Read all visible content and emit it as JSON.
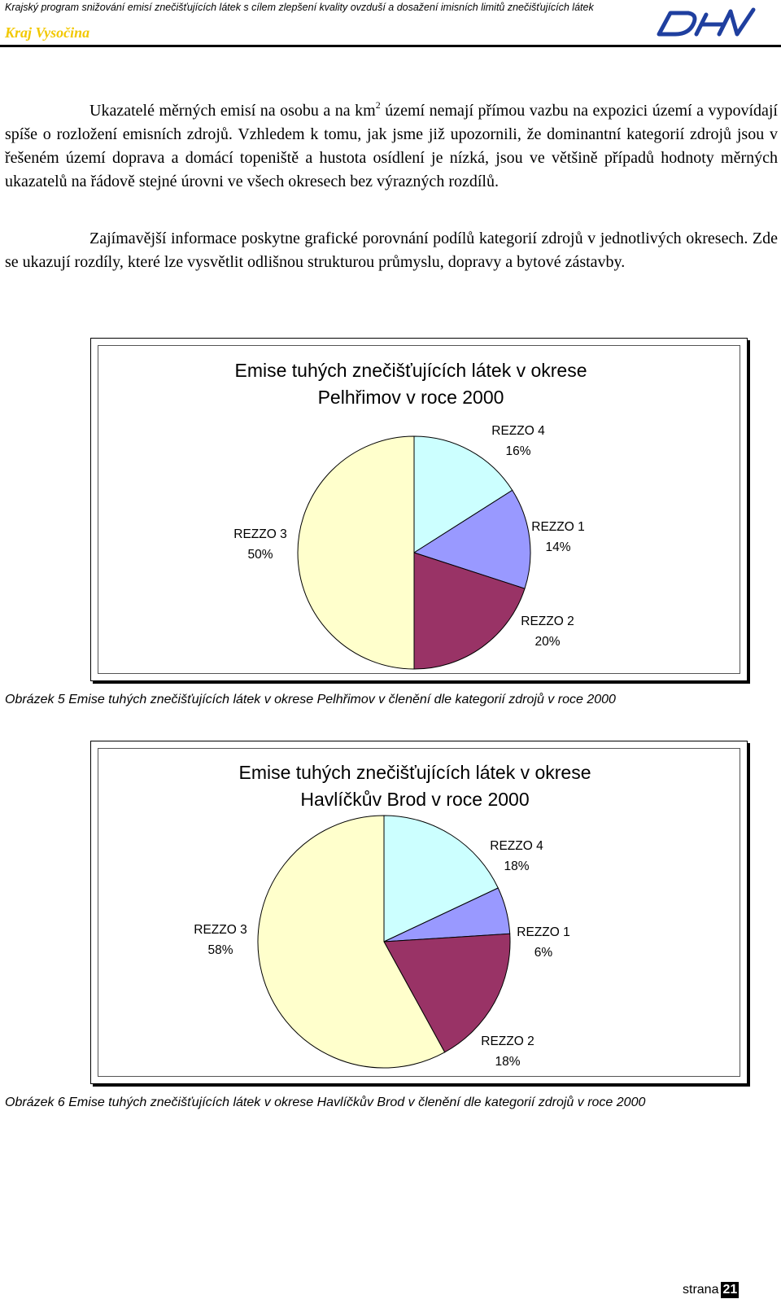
{
  "header": {
    "title": "Krajský program snižování emisí znečišťujících látek s cílem zlepšení kvality ovzduší a dosažení imisních limitů znečišťujících látek",
    "region": "Kraj Vysočina",
    "logo_text": "DHV"
  },
  "body": {
    "p1_before": "Ukazatelé měrných emisí na osobu a na km",
    "p1_sup": "2",
    "p1_after": " území nemají přímou vazbu na expozici území a vypovídají spíše o rozložení emisních zdrojů. Vzhledem k tomu, jak jsme již upozornili, že dominantní kategorií zdrojů jsou v řešeném území doprava a domácí topeniště a hustota osídlení je nízká, jsou ve většině případů hodnoty měrných ukazatelů na řádově stejné úrovni ve všech okresech bez výrazných rozdílů.",
    "p2": "Zajímavější informace poskytne grafické porovnání podílů kategorií zdrojů v jednotlivých okresech. Zde se ukazují rozdíly, které lze vysvětlit odlišnou strukturou průmyslu, dopravy a bytové zástavby."
  },
  "colors": {
    "REZZO 1": "#9999ff",
    "REZZO 2": "#993366",
    "REZZO 3": "#ffffcc",
    "REZZO 4": "#ccffff",
    "region_text": "#f2c800",
    "logo": "#1f3f9f"
  },
  "chart_data": [
    {
      "type": "pie",
      "title_line1": "Emise tuhých znečišťujících látek v okrese",
      "title_line2": "Pelhřimov v roce 2000",
      "slices": [
        {
          "name": "REZZO 4",
          "value": 16,
          "pct_label": "16%"
        },
        {
          "name": "REZZO 1",
          "value": 14,
          "pct_label": "14%"
        },
        {
          "name": "REZZO 2",
          "value": 20,
          "pct_label": "20%"
        },
        {
          "name": "REZZO 3",
          "value": 50,
          "pct_label": "50%"
        }
      ]
    },
    {
      "type": "pie",
      "title_line1": "Emise tuhých znečišťujících látek v okrese",
      "title_line2": "Havlíčkův Brod v roce 2000",
      "slices": [
        {
          "name": "REZZO 4",
          "value": 18,
          "pct_label": "18%"
        },
        {
          "name": "REZZO 1",
          "value": 6,
          "pct_label": "6%"
        },
        {
          "name": "REZZO 2",
          "value": 18,
          "pct_label": "18%"
        },
        {
          "name": "REZZO 3",
          "value": 58,
          "pct_label": "58%"
        }
      ]
    }
  ],
  "captions": {
    "fig5": "Obrázek 5 Emise tuhých znečišťujících látek v okrese Pelhřimov v členění dle kategorií zdrojů v roce 2000",
    "fig6": "Obrázek 6 Emise tuhých znečišťujících látek v okrese Havlíčkův Brod v členění dle kategorií zdrojů v roce 2000"
  },
  "footer": {
    "label": "strana",
    "page": "21"
  }
}
